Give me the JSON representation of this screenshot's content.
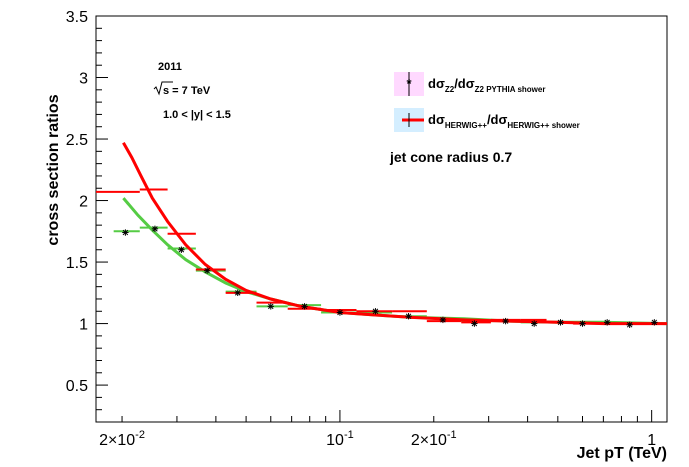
{
  "chart_data": {
    "type": "scatter",
    "title": "",
    "xlabel": "Jet pT (TeV)",
    "ylabel": "cross section ratios",
    "x_scale": "log",
    "xlim": [
      0.0165,
      1.12
    ],
    "ylim": [
      0.2,
      3.5
    ],
    "x_tick_labels": [
      {
        "x": 0.02,
        "label": "2×10",
        "exp": "-2"
      },
      {
        "x": 0.1,
        "label": "10",
        "exp": "-1"
      },
      {
        "x": 0.2,
        "label": "2×10",
        "exp": "-1"
      },
      {
        "x": 1,
        "label": "1",
        "exp": ""
      }
    ],
    "y_ticks": [
      0.5,
      1,
      1.5,
      2,
      2.5,
      3,
      3.5
    ],
    "y_tick_labels": [
      "0.5",
      "1",
      "1.5",
      "2",
      "2.5",
      "3",
      "3.5"
    ],
    "annotations": {
      "year": "2011",
      "sqrt_s": "s = 7 TeV",
      "rapidity": "1.0 < |y| < 1.5",
      "cone": "jet cone radius 0.7"
    },
    "legend": {
      "placement": "top-right",
      "entries": [
        {
          "text": "dσ",
          "sub1": "Z2",
          "mid": "/dσ",
          "sub2": "Z2 PYTHIA shower",
          "color": "#000000",
          "fill": "#ff44ff"
        },
        {
          "text": "dσ",
          "sub1": "HERWIG++",
          "mid": "/dσ",
          "sub2": "HERWIG++ shower",
          "color": "#ff0000",
          "fill": "#44aaff"
        }
      ]
    },
    "series": [
      {
        "kind": "black-star-points",
        "color": "#000000",
        "points": [
          {
            "x": 0.0205,
            "y": 1.74
          },
          {
            "x": 0.0255,
            "y": 1.77
          },
          {
            "x": 0.031,
            "y": 1.6
          },
          {
            "x": 0.0375,
            "y": 1.43
          },
          {
            "x": 0.047,
            "y": 1.25
          },
          {
            "x": 0.06,
            "y": 1.14
          },
          {
            "x": 0.077,
            "y": 1.14
          },
          {
            "x": 0.1,
            "y": 1.09
          },
          {
            "x": 0.13,
            "y": 1.1
          },
          {
            "x": 0.166,
            "y": 1.06
          },
          {
            "x": 0.214,
            "y": 1.03
          },
          {
            "x": 0.27,
            "y": 1.0
          },
          {
            "x": 0.34,
            "y": 1.02
          },
          {
            "x": 0.42,
            "y": 1.0
          },
          {
            "x": 0.51,
            "y": 1.01
          },
          {
            "x": 0.6,
            "y": 1.0
          },
          {
            "x": 0.72,
            "y": 1.01
          },
          {
            "x": 0.85,
            "y": 0.99
          },
          {
            "x": 1.02,
            "y": 1.01
          }
        ]
      },
      {
        "kind": "green-hist",
        "color": "#55cc44",
        "bins": [
          {
            "x0": 0.0188,
            "x1": 0.0228,
            "y": 1.75
          },
          {
            "x0": 0.0228,
            "x1": 0.028,
            "y": 1.78
          },
          {
            "x0": 0.028,
            "x1": 0.0345,
            "y": 1.61
          },
          {
            "x0": 0.0345,
            "x1": 0.043,
            "y": 1.43
          },
          {
            "x0": 0.043,
            "x1": 0.054,
            "y": 1.26
          },
          {
            "x0": 0.054,
            "x1": 0.068,
            "y": 1.14
          },
          {
            "x0": 0.068,
            "x1": 0.087,
            "y": 1.15
          },
          {
            "x0": 0.087,
            "x1": 0.113,
            "y": 1.09
          },
          {
            "x0": 0.113,
            "x1": 0.147,
            "y": 1.09
          },
          {
            "x0": 0.147,
            "x1": 0.19,
            "y": 1.06
          },
          {
            "x0": 0.19,
            "x1": 0.245,
            "y": 1.04
          },
          {
            "x0": 0.245,
            "x1": 0.305,
            "y": 1.02
          },
          {
            "x0": 0.305,
            "x1": 0.38,
            "y": 1.02
          },
          {
            "x0": 0.38,
            "x1": 0.46,
            "y": 1.01
          },
          {
            "x0": 0.46,
            "x1": 0.56,
            "y": 1.01
          },
          {
            "x0": 0.56,
            "x1": 0.66,
            "y": 1.01
          },
          {
            "x0": 0.66,
            "x1": 0.79,
            "y": 1.0
          },
          {
            "x0": 0.79,
            "x1": 0.93,
            "y": 1.0
          },
          {
            "x0": 0.93,
            "x1": 1.1,
            "y": 1.0
          }
        ],
        "curve": [
          {
            "x": 0.0202,
            "y": 2.02
          },
          {
            "x": 0.0225,
            "y": 1.88
          },
          {
            "x": 0.025,
            "y": 1.76
          },
          {
            "x": 0.028,
            "y": 1.64
          },
          {
            "x": 0.032,
            "y": 1.52
          },
          {
            "x": 0.037,
            "y": 1.42
          },
          {
            "x": 0.043,
            "y": 1.33
          },
          {
            "x": 0.05,
            "y": 1.26
          },
          {
            "x": 0.06,
            "y": 1.2
          },
          {
            "x": 0.075,
            "y": 1.14
          },
          {
            "x": 0.1,
            "y": 1.09
          },
          {
            "x": 0.13,
            "y": 1.07
          },
          {
            "x": 0.17,
            "y": 1.05
          },
          {
            "x": 0.25,
            "y": 1.04
          },
          {
            "x": 0.35,
            "y": 1.02
          },
          {
            "x": 0.5,
            "y": 1.01
          },
          {
            "x": 0.7,
            "y": 1.01
          },
          {
            "x": 1.12,
            "y": 1.0
          }
        ]
      },
      {
        "kind": "red-hist",
        "color": "#ff0000",
        "bins": [
          {
            "x0": 0.0165,
            "x1": 0.0228,
            "y": 2.07
          },
          {
            "x0": 0.0228,
            "x1": 0.028,
            "y": 2.09
          },
          {
            "x0": 0.028,
            "x1": 0.0345,
            "y": 1.73
          },
          {
            "x0": 0.0345,
            "x1": 0.043,
            "y": 1.44
          },
          {
            "x0": 0.043,
            "x1": 0.054,
            "y": 1.25
          },
          {
            "x0": 0.054,
            "x1": 0.068,
            "y": 1.17
          },
          {
            "x0": 0.068,
            "x1": 0.087,
            "y": 1.12
          },
          {
            "x0": 0.087,
            "x1": 0.113,
            "y": 1.11
          },
          {
            "x0": 0.113,
            "x1": 0.147,
            "y": 1.1
          },
          {
            "x0": 0.147,
            "x1": 0.19,
            "y": 1.1
          },
          {
            "x0": 0.19,
            "x1": 0.245,
            "y": 1.02
          },
          {
            "x0": 0.245,
            "x1": 0.305,
            "y": 1.01
          },
          {
            "x0": 0.305,
            "x1": 0.38,
            "y": 1.03
          },
          {
            "x0": 0.38,
            "x1": 0.46,
            "y": 1.03
          },
          {
            "x0": 0.46,
            "x1": 0.56,
            "y": 1.01
          },
          {
            "x0": 0.56,
            "x1": 0.66,
            "y": 1.0
          },
          {
            "x0": 0.66,
            "x1": 0.79,
            "y": 1.0
          },
          {
            "x0": 0.79,
            "x1": 0.93,
            "y": 1.0
          },
          {
            "x0": 0.93,
            "x1": 1.12,
            "y": 1.0
          }
        ],
        "curve": [
          {
            "x": 0.0202,
            "y": 2.47
          },
          {
            "x": 0.0215,
            "y": 2.35
          },
          {
            "x": 0.023,
            "y": 2.2
          },
          {
            "x": 0.025,
            "y": 2.02
          },
          {
            "x": 0.028,
            "y": 1.83
          },
          {
            "x": 0.032,
            "y": 1.64
          },
          {
            "x": 0.037,
            "y": 1.48
          },
          {
            "x": 0.043,
            "y": 1.36
          },
          {
            "x": 0.05,
            "y": 1.27
          },
          {
            "x": 0.06,
            "y": 1.2
          },
          {
            "x": 0.075,
            "y": 1.14
          },
          {
            "x": 0.1,
            "y": 1.09
          },
          {
            "x": 0.13,
            "y": 1.07
          },
          {
            "x": 0.17,
            "y": 1.05
          },
          {
            "x": 0.25,
            "y": 1.03
          },
          {
            "x": 0.35,
            "y": 1.02
          },
          {
            "x": 0.5,
            "y": 1.01
          },
          {
            "x": 0.7,
            "y": 1.0
          },
          {
            "x": 1.12,
            "y": 1.0
          }
        ]
      }
    ]
  }
}
